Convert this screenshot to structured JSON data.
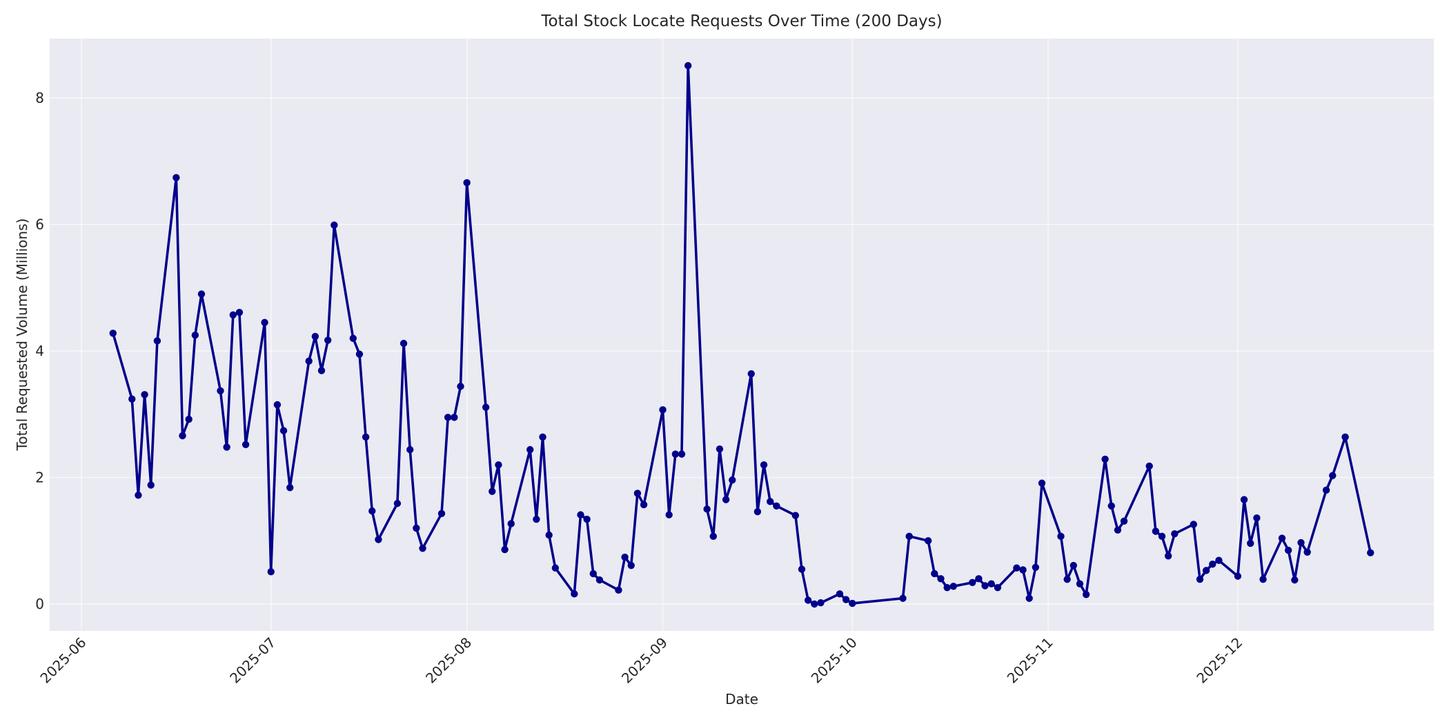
{
  "chart_data": {
    "type": "line",
    "title": "Total Stock Locate Requests Over Time (200 Days)",
    "xlabel": "Date",
    "ylabel": "Total Requested Volume (Millions)",
    "grid": true,
    "legend": null,
    "style": {
      "line_color": "#00008b",
      "marker": "circle",
      "plot_background": "#eaeaf2",
      "grid_color": "#ffffff"
    },
    "xlim": [
      "2025-05-27",
      "2025-12-28"
    ],
    "ylim": [
      -0.42,
      8.9
    ],
    "x_ticks": [
      "2025-06",
      "2025-07",
      "2025-08",
      "2025-09",
      "2025-10",
      "2025-11",
      "2025-12"
    ],
    "y_ticks": [
      0,
      2,
      4,
      6,
      8
    ],
    "series": [
      {
        "name": "Total Requested Volume (Millions)",
        "x": [
          "2025-06-06",
          "2025-06-09",
          "2025-06-10",
          "2025-06-11",
          "2025-06-12",
          "2025-06-13",
          "2025-06-16",
          "2025-06-17",
          "2025-06-18",
          "2025-06-19",
          "2025-06-20",
          "2025-06-23",
          "2025-06-24",
          "2025-06-25",
          "2025-06-26",
          "2025-06-27",
          "2025-06-30",
          "2025-07-01",
          "2025-07-02",
          "2025-07-03",
          "2025-07-04",
          "2025-07-07",
          "2025-07-08",
          "2025-07-09",
          "2025-07-10",
          "2025-07-11",
          "2025-07-14",
          "2025-07-15",
          "2025-07-16",
          "2025-07-17",
          "2025-07-18",
          "2025-07-21",
          "2025-07-22",
          "2025-07-23",
          "2025-07-24",
          "2025-07-25",
          "2025-07-28",
          "2025-07-29",
          "2025-07-30",
          "2025-07-31",
          "2025-08-01",
          "2025-08-04",
          "2025-08-05",
          "2025-08-06",
          "2025-08-07",
          "2025-08-08",
          "2025-08-11",
          "2025-08-12",
          "2025-08-13",
          "2025-08-14",
          "2025-08-15",
          "2025-08-18",
          "2025-08-19",
          "2025-08-20",
          "2025-08-21",
          "2025-08-22",
          "2025-08-25",
          "2025-08-26",
          "2025-08-27",
          "2025-08-28",
          "2025-08-29",
          "2025-09-01",
          "2025-09-02",
          "2025-09-03",
          "2025-09-04",
          "2025-09-05",
          "2025-09-08",
          "2025-09-09",
          "2025-09-10",
          "2025-09-11",
          "2025-09-12",
          "2025-09-15",
          "2025-09-16",
          "2025-09-17",
          "2025-09-18",
          "2025-09-19",
          "2025-09-22",
          "2025-09-23",
          "2025-09-24",
          "2025-09-25",
          "2025-09-26",
          "2025-09-29",
          "2025-09-30",
          "2025-10-01",
          "2025-10-09",
          "2025-10-10",
          "2025-10-13",
          "2025-10-14",
          "2025-10-15",
          "2025-10-16",
          "2025-10-17",
          "2025-10-20",
          "2025-10-21",
          "2025-10-22",
          "2025-10-23",
          "2025-10-24",
          "2025-10-27",
          "2025-10-28",
          "2025-10-29",
          "2025-10-30",
          "2025-10-31",
          "2025-11-03",
          "2025-11-04",
          "2025-11-05",
          "2025-11-06",
          "2025-11-07",
          "2025-11-10",
          "2025-11-11",
          "2025-11-12",
          "2025-11-13",
          "2025-11-17",
          "2025-11-18",
          "2025-11-19",
          "2025-11-20",
          "2025-11-21",
          "2025-11-24",
          "2025-11-25",
          "2025-11-26",
          "2025-11-27",
          "2025-11-28",
          "2025-12-01",
          "2025-12-02",
          "2025-12-03",
          "2025-12-04",
          "2025-12-05",
          "2025-12-08",
          "2025-12-09",
          "2025-12-10",
          "2025-12-11",
          "2025-12-12",
          "2025-12-15",
          "2025-12-16",
          "2025-12-18",
          "2025-12-22"
        ],
        "values": [
          4.28,
          3.24,
          1.72,
          3.31,
          1.88,
          4.16,
          6.74,
          2.66,
          2.92,
          4.25,
          4.9,
          3.37,
          2.48,
          4.57,
          4.61,
          2.52,
          4.45,
          0.51,
          3.15,
          2.74,
          1.84,
          3.84,
          4.23,
          3.69,
          4.17,
          5.99,
          4.2,
          3.95,
          2.64,
          1.47,
          1.02,
          1.59,
          4.12,
          2.44,
          1.2,
          0.88,
          1.43,
          2.95,
          2.95,
          3.44,
          6.66,
          3.11,
          1.78,
          2.2,
          0.86,
          1.27,
          2.44,
          1.34,
          2.64,
          1.09,
          0.57,
          0.16,
          1.41,
          1.34,
          0.48,
          0.38,
          0.22,
          0.74,
          0.61,
          1.75,
          1.57,
          3.07,
          1.41,
          2.37,
          2.37,
          8.51,
          1.5,
          1.07,
          2.45,
          1.65,
          1.96,
          3.64,
          1.46,
          2.2,
          1.62,
          1.55,
          1.4,
          0.55,
          0.06,
          0.0,
          0.02,
          0.16,
          0.07,
          0.01,
          0.09,
          1.07,
          1.0,
          0.48,
          0.4,
          0.26,
          0.28,
          0.34,
          0.4,
          0.29,
          0.32,
          0.26,
          0.57,
          0.54,
          0.09,
          0.58,
          1.91,
          1.07,
          0.39,
          0.61,
          0.32,
          0.15,
          2.29,
          1.55,
          1.17,
          1.31,
          2.18,
          1.15,
          1.07,
          0.76,
          1.11,
          1.26,
          0.39,
          0.53,
          0.63,
          0.69,
          0.44,
          1.65,
          0.96,
          1.36,
          0.39,
          1.04,
          0.85,
          0.38,
          0.97,
          0.82,
          1.8,
          2.03,
          2.64,
          0.81
        ]
      }
    ]
  }
}
